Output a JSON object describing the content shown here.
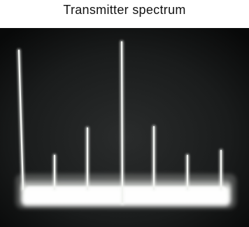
{
  "title": "Transmitter spectrum"
}
